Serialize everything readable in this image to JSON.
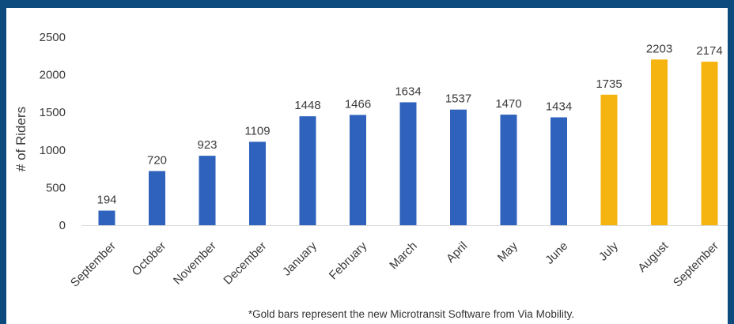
{
  "chart_data": {
    "type": "bar",
    "ylabel": "# of Riders",
    "ylim": [
      0,
      2500
    ],
    "yticks": [
      0,
      500,
      1000,
      1500,
      2000,
      2500
    ],
    "grid": false,
    "categories": [
      "September",
      "October",
      "November",
      "December",
      "January",
      "February",
      "March",
      "April",
      "May",
      "June",
      "July",
      "August",
      "September"
    ],
    "values": [
      194,
      720,
      923,
      1109,
      1448,
      1466,
      1634,
      1537,
      1470,
      1434,
      1735,
      2203,
      2174
    ],
    "bar_colors": [
      "#2e62bd",
      "#2e62bd",
      "#2e62bd",
      "#2e62bd",
      "#2e62bd",
      "#2e62bd",
      "#2e62bd",
      "#2e62bd",
      "#2e62bd",
      "#2e62bd",
      "#f5b40f",
      "#f5b40f",
      "#f5b40f"
    ],
    "data_labels": [
      "194",
      "720",
      "923",
      "1109",
      "1448",
      "1466",
      "1634",
      "1537",
      "1470",
      "1434",
      "1735",
      "2203",
      "2174"
    ],
    "footnote": "*Gold bars represent the new Microtransit Software from Via Mobility."
  },
  "colors": {
    "frame_background": "#0d4a7e",
    "chart_background": "#ffffff",
    "baseline_bar": "#2e62bd",
    "new_software_bar": "#f5b40f"
  }
}
